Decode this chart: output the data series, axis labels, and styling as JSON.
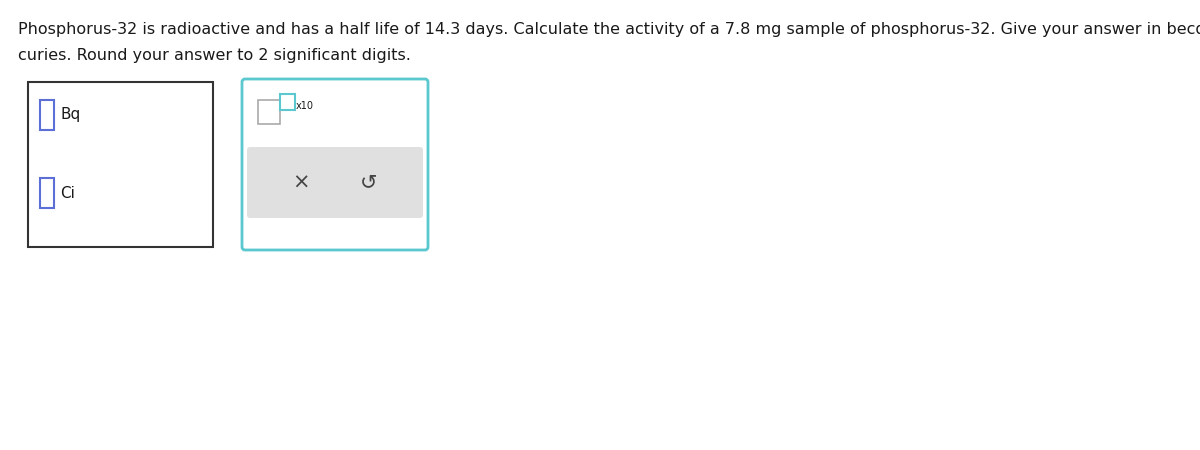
{
  "title_line1": "Phosphorus-32 is radioactive and has a half life of 14.3 days. Calculate the activity of a 7.8 mg sample of phosphorus-32. Give your answer in becquerels and in",
  "title_line2": "curies. Round your answer to 2 significant digits.",
  "bg_color": "#ffffff",
  "text_color": "#1a1a1a",
  "box1_color": "#333333",
  "input_color": "#5b6fd6",
  "label_bq": "Bq",
  "label_ci": "Ci",
  "box2_border_color": "#5bc8d0",
  "x10_label": "x10",
  "x_symbol": "×",
  "undo_symbol": "↺",
  "gray_bar_color": "#e0e0e0",
  "font_size_main": 11.5,
  "font_size_labels": 11,
  "font_size_small": 8
}
